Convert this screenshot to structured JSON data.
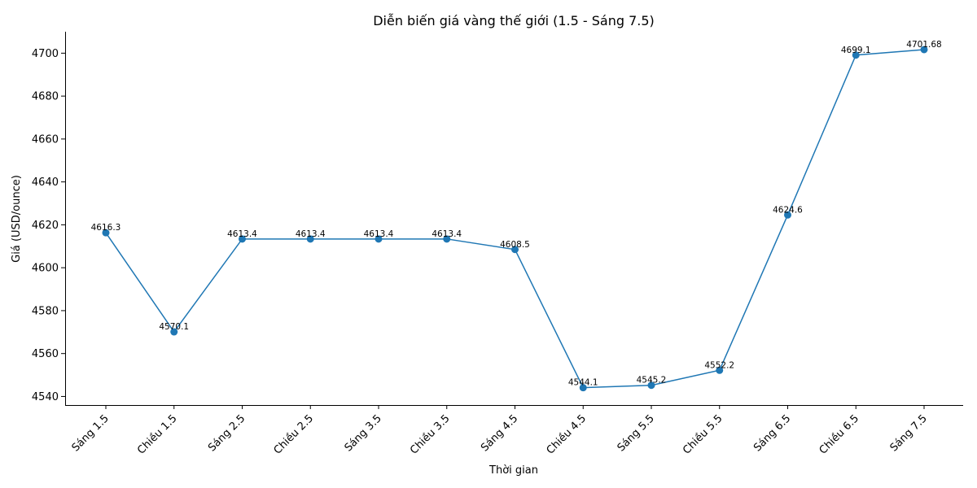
{
  "chart_data": {
    "type": "line",
    "title": "Diễn biến giá vàng thế giới (1.5 - Sáng 7.5)",
    "xlabel": "Thời gian",
    "ylabel": "Giá (USD/ounce)",
    "categories": [
      "Sáng 1.5",
      "Chiều 1.5",
      "Sáng 2.5",
      "Chiều 2.5",
      "Sáng 3.5",
      "Chiều 3.5",
      "Sáng 4.5",
      "Chiều 4.5",
      "Sáng 5.5",
      "Chiều 5.5",
      "Sáng 6.5",
      "Chiều 6.5",
      "Sáng 7.5"
    ],
    "values": [
      4616.3,
      4570.1,
      4613.4,
      4613.4,
      4613.4,
      4613.4,
      4608.5,
      4544.1,
      4545.2,
      4552.2,
      4624.6,
      4699.1,
      4701.68
    ],
    "value_labels": [
      "4616.3",
      "4570.1",
      "4613.4",
      "4613.4",
      "4613.4",
      "4613.4",
      "4608.5",
      "4544.1",
      "4545.2",
      "4552.2",
      "4624.6",
      "4699.1",
      "4701.68"
    ],
    "yticks": [
      4540,
      4560,
      4580,
      4600,
      4620,
      4640,
      4660,
      4680,
      4700
    ],
    "ylim": [
      4536,
      4710
    ],
    "grid": false,
    "line_color": "#1f77b4",
    "marker": "circle"
  }
}
